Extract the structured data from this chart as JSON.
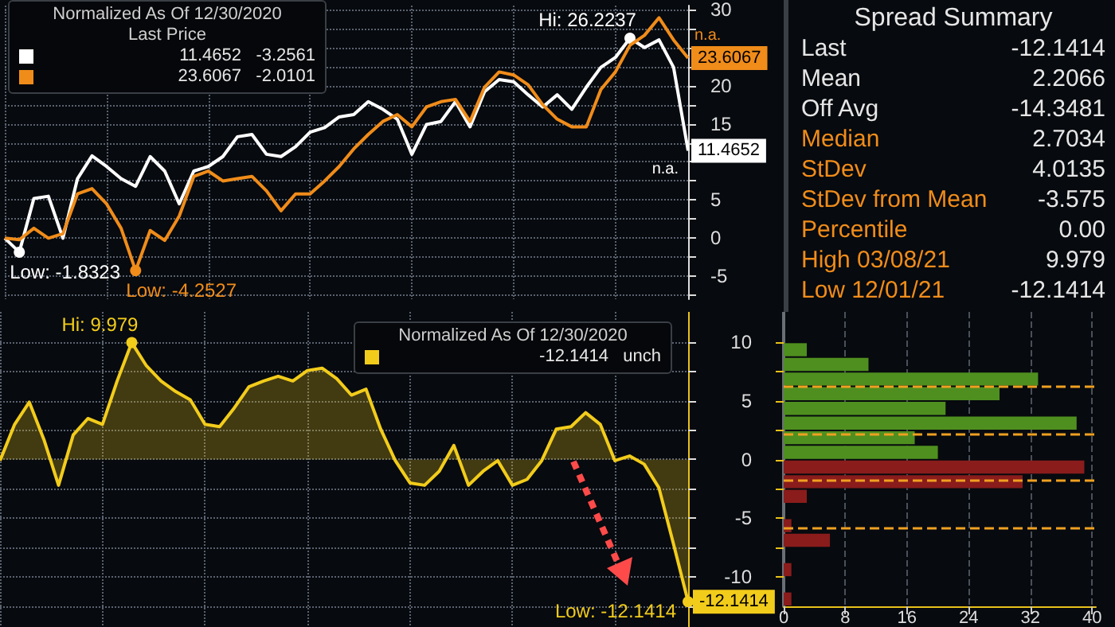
{
  "chart_data": [
    {
      "type": "line",
      "title": "Normalized As Of 12/30/2020",
      "subtitle": "Last Price",
      "grid": true,
      "categories": [
        null,
        null,
        null,
        null,
        null,
        null,
        null,
        null,
        null,
        null,
        null,
        null,
        null,
        null,
        null,
        null,
        null,
        null,
        null,
        null,
        null,
        null,
        null,
        null,
        null,
        null,
        null,
        null,
        null,
        null,
        null,
        null,
        null,
        null,
        null,
        null,
        null,
        null,
        null,
        null,
        null,
        null,
        null,
        null,
        null,
        null,
        null,
        null
      ],
      "ylim": [
        -8,
        30.5
      ],
      "yticks": [
        {
          "value": -7.5,
          "label": null
        },
        -5,
        {
          "value": -2.5,
          "label": null
        },
        0,
        {
          "value": 2.5,
          "label": null
        },
        5,
        {
          "value": 7.5,
          "label": null
        },
        {
          "value": 10,
          "label": null
        },
        {
          "value": 12.5,
          "label": null
        },
        15,
        {
          "value": 17.5,
          "label": null
        },
        20,
        {
          "value": 22.5,
          "label": null
        },
        {
          "value": 25,
          "label": null
        },
        {
          "value": 27.5,
          "label": null
        },
        30
      ],
      "series": [
        {
          "color": "#ffffff",
          "values": [
            0,
            -1.8323,
            5.2,
            5.5,
            0,
            7.8,
            10.8,
            9.4,
            7.8,
            6.8,
            10.7,
            8.8,
            4.5,
            8.8,
            9.4,
            10.7,
            13.3,
            13.6,
            11.0,
            10.7,
            12.0,
            13.9,
            14.5,
            15.9,
            16.2,
            17.9,
            16.9,
            15.6,
            11.0,
            14.9,
            15.3,
            17.9,
            14.6,
            19.2,
            20.8,
            20.5,
            18.8,
            17.2,
            18.8,
            16.9,
            19.8,
            22.4,
            23.7,
            26.2237,
            25.0,
            26.0,
            22.4,
            11.4652
          ],
          "value_labels": [
            null,
            "Low: -1.8323",
            null,
            null,
            null,
            null,
            null,
            null,
            null,
            null,
            null,
            null,
            null,
            null,
            null,
            null,
            null,
            null,
            null,
            null,
            null,
            null,
            null,
            null,
            null,
            null,
            null,
            null,
            null,
            null,
            null,
            null,
            null,
            null,
            null,
            null,
            null,
            null,
            null,
            null,
            null,
            null,
            null,
            "Hi: 26.2237",
            null,
            null,
            null,
            "11.4652"
          ]
        },
        {
          "color": "#f08c1a",
          "values": [
            0,
            -0.2,
            1.3,
            0,
            0.6,
            5.8,
            6.5,
            4.5,
            1.3,
            -4.2527,
            1.0,
            -0.3,
            2.9,
            8.1,
            8.8,
            7.5,
            7.8,
            8.1,
            6.2,
            3.6,
            5.8,
            5.8,
            7.5,
            9.4,
            11.7,
            13.6,
            15.3,
            16.2,
            14.6,
            17.2,
            17.9,
            18.2,
            15.3,
            19.8,
            21.8,
            21.4,
            20.1,
            17.5,
            15.6,
            14.6,
            14.6,
            19.5,
            21.8,
            25.3,
            26.6,
            28.9,
            26.0,
            23.6067
          ],
          "value_labels": [
            null,
            null,
            null,
            null,
            null,
            null,
            null,
            null,
            null,
            "Low: -4.2527",
            null,
            null,
            null,
            null,
            null,
            null,
            null,
            null,
            null,
            null,
            null,
            null,
            null,
            null,
            null,
            null,
            null,
            null,
            null,
            null,
            null,
            null,
            null,
            null,
            null,
            null,
            null,
            null,
            null,
            null,
            null,
            null,
            null,
            null,
            null,
            null,
            null,
            "23.6067"
          ]
        }
      ],
      "annotations": [
        "11.4652   -3.2561",
        "23.6067   -2.0101",
        "n.a.",
        "n.a."
      ]
    },
    {
      "type": "area",
      "title": "Normalized As Of 12/30/2020",
      "tick_labels": false,
      "grid": true,
      "categories": [
        null,
        null,
        null,
        null,
        null,
        null,
        null,
        null,
        null,
        null,
        null,
        null,
        null,
        null,
        null,
        null,
        null,
        null,
        null,
        null,
        null,
        null,
        null,
        null,
        null,
        null,
        null,
        null,
        null,
        null,
        null,
        null,
        null,
        null,
        null,
        null,
        null,
        null,
        null,
        null,
        null,
        null,
        null,
        null,
        null,
        null,
        null,
        null
      ],
      "ylim": [
        -14.3,
        12.6
      ],
      "yticks": [
        {
          "value": -12.5,
          "label": null
        },
        -10,
        {
          "value": -7.5,
          "label": null
        },
        -5,
        {
          "value": -2.5,
          "label": null
        },
        0,
        {
          "value": 2.5,
          "label": null
        },
        5,
        {
          "value": 7.5,
          "label": null
        },
        10
      ],
      "series": [
        {
          "color": "#f2cc1b",
          "values": [
            -0.1,
            3.0,
            4.9,
            1.7,
            -2.2,
            2.1,
            3.5,
            3.0,
            6.7,
            9.979,
            8.0,
            6.7,
            5.8,
            5.1,
            3.0,
            2.8,
            4.4,
            6.2,
            6.7,
            7.1,
            6.7,
            7.6,
            7.8,
            6.9,
            5.5,
            6.0,
            2.6,
            -0.1,
            -2.0,
            -2.2,
            -1.0,
            1.2,
            -2.2,
            -1.0,
            -0.1,
            -2.2,
            -1.7,
            -0.1,
            2.6,
            2.8,
            4.0,
            3.0,
            -0.1,
            0.3,
            -0.4,
            -2.4,
            -7.2,
            -12.1414
          ],
          "value_labels": [
            null,
            null,
            null,
            null,
            null,
            null,
            null,
            null,
            null,
            "Hi: 9.979",
            null,
            null,
            null,
            null,
            null,
            null,
            null,
            null,
            null,
            null,
            null,
            null,
            null,
            null,
            null,
            null,
            null,
            null,
            null,
            null,
            null,
            null,
            null,
            null,
            null,
            null,
            null,
            null,
            null,
            null,
            null,
            null,
            null,
            null,
            null,
            null,
            null,
            "Low: -12.1414"
          ]
        }
      ],
      "annotations": [
        "-12.1414   unch",
        "-12.1414"
      ]
    },
    {
      "type": "histogram",
      "orientation": "horizontal",
      "grid": "x",
      "yticks": [
        -10,
        {
          "value": -7.5,
          "label": null
        },
        -5,
        {
          "value": -2.5,
          "label": null
        },
        0,
        {
          "value": 2.5,
          "label": null
        },
        5,
        {
          "value": 7.5,
          "label": null
        },
        10
      ],
      "bins": [
        -12.5,
        -11.25,
        -10,
        -8.75,
        -7.5,
        -6.25,
        -5,
        -3.75,
        -2.5,
        -1.25,
        0,
        1.25,
        2.5,
        3.75,
        5,
        6.25,
        7.5,
        8.75,
        10
      ],
      "values": [
        1,
        0,
        1,
        0,
        6,
        1,
        0,
        3,
        31,
        39,
        20,
        17,
        38,
        21,
        28,
        33,
        11,
        3
      ],
      "colors": [
        "#8a1c1c",
        "#8a1c1c",
        "#8a1c1c",
        "#8a1c1c",
        "#8a1c1c",
        "#8a1c1c",
        "#8a1c1c",
        "#8a1c1c",
        "#8a1c1c",
        "#8a1c1c",
        "#4f8f1f",
        "#4f8f1f",
        "#4f8f1f",
        "#4f8f1f",
        "#4f8f1f",
        "#4f8f1f",
        "#4f8f1f",
        "#4f8f1f"
      ],
      "xlim": [
        0,
        40.5
      ],
      "xticks": [
        0,
        8,
        16,
        24,
        32,
        40
      ],
      "ylim": [
        -12.5,
        12.6
      ],
      "ref_lines": [
        {
          "axis": "y",
          "value": 6.2,
          "color": "#f0a020",
          "line_style": "dashed"
        },
        {
          "axis": "y",
          "value": 2.2,
          "color": "#f0a020",
          "line_style": "dashed"
        },
        {
          "axis": "y",
          "value": -1.8,
          "color": "#f0a020",
          "line_style": "dashed"
        },
        {
          "axis": "y",
          "value": -5.8,
          "color": "#f0a020",
          "line_style": "dashed"
        }
      ]
    },
    {
      "type": "other",
      "title": "Spread Summary",
      "annotations": [
        "Last",
        "-12.1414",
        "Mean",
        "2.2066",
        "Off Avg",
        "-14.3481",
        "Median",
        "2.7034",
        "StDev",
        "4.0135",
        "StDev from Mean",
        "-3.575",
        "Percentile",
        "0.00",
        "High 03/08/21",
        "9.979",
        "Low 12/01/21",
        "-12.1414"
      ]
    }
  ]
}
